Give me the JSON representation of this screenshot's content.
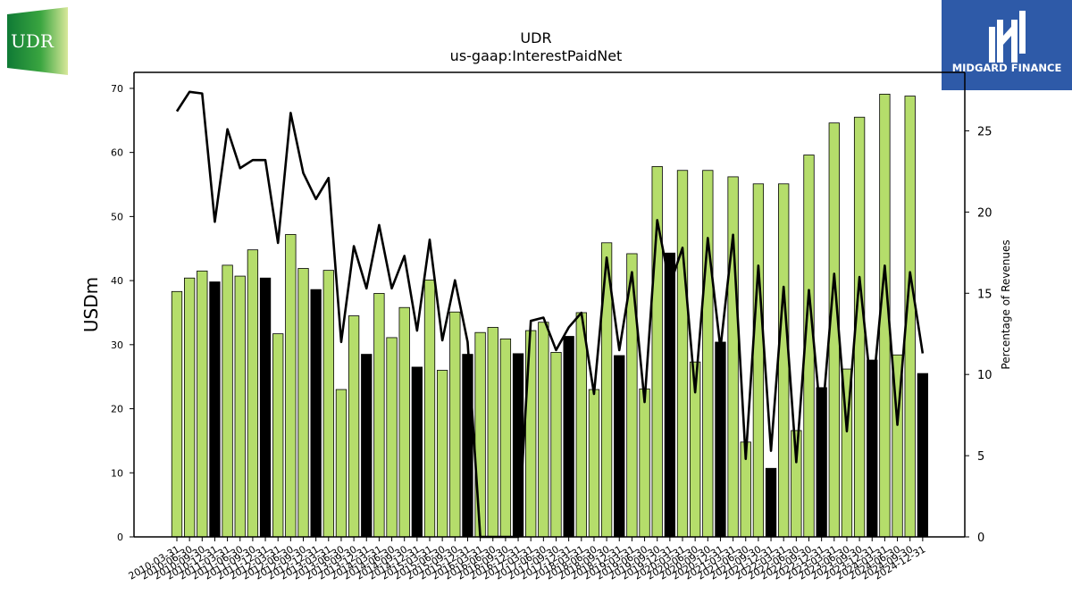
{
  "header": {
    "title": "UDR",
    "subtitle": "us-gaap:InterestPaidNet"
  },
  "logos": {
    "left_text": "UDR",
    "right_text": "MIDGARD FINANCE"
  },
  "colors": {
    "bar_green": "#b5dd6b",
    "bar_black": "#000000",
    "line": "#000000",
    "brand_blue": "#2e5aa8",
    "udr_green": "#0f8a3a"
  },
  "chart_data": {
    "type": "bar",
    "title": "UDR",
    "subtitle": "us-gaap:InterestPaidNet",
    "ylabel": "USDm",
    "y2label": "Percentage of Revenues",
    "ylim": [
      0,
      72.5
    ],
    "y2lim": [
      0,
      28.6
    ],
    "yticks": [
      0,
      10,
      20,
      30,
      40,
      50,
      60,
      70
    ],
    "y2ticks": [
      0,
      5,
      10,
      15,
      20,
      25
    ],
    "grid": false,
    "x": [
      "2010-03-31",
      "2010-06-30",
      "2010-09-30",
      "2010-12-31",
      "2011-03-31",
      "2011-06-30",
      "2011-09-30",
      "2011-12-31",
      "2012-03-31",
      "2012-06-30",
      "2012-09-30",
      "2012-12-31",
      "2013-03-31",
      "2013-06-30",
      "2013-09-30",
      "2013-12-31",
      "2014-03-31",
      "2014-06-30",
      "2014-09-30",
      "2014-12-31",
      "2015-03-31",
      "2015-06-30",
      "2015-09-30",
      "2015-12-31",
      "2016-03-31",
      "2016-06-30",
      "2016-09-30",
      "2016-12-31",
      "2017-03-31",
      "2017-06-30",
      "2017-09-30",
      "2017-12-31",
      "2018-03-31",
      "2018-06-30",
      "2018-09-30",
      "2018-12-31",
      "2019-03-31",
      "2019-06-30",
      "2019-09-30",
      "2019-12-31",
      "2020-03-31",
      "2020-06-30",
      "2020-09-30",
      "2020-12-31",
      "2021-03-31",
      "2021-06-30",
      "2021-09-30",
      "2021-12-31",
      "2022-03-31",
      "2022-06-30",
      "2022-09-30",
      "2022-12-31",
      "2023-03-31",
      "2023-06-30",
      "2023-09-30",
      "2023-12-31",
      "2024-03-31",
      "2024-06-30",
      "2024-09-30",
      "2024-12-31"
    ],
    "series": [
      {
        "name": "InterestPaidNet (USDm)",
        "axis": "left",
        "values": [
          38.3,
          40.4,
          41.5,
          39.8,
          42.4,
          40.7,
          44.8,
          40.4,
          31.7,
          47.2,
          41.9,
          38.6,
          41.6,
          23.0,
          34.5,
          28.5,
          38.0,
          31.1,
          35.8,
          26.5,
          40.1,
          26.0,
          35.1,
          28.5,
          31.9,
          32.7,
          30.9,
          28.6,
          32.2,
          33.5,
          28.8,
          31.3,
          35.0,
          23.0,
          45.9,
          28.3,
          44.2,
          23.1,
          57.8,
          44.3,
          57.2,
          27.3,
          57.2,
          30.4,
          56.2,
          14.8,
          55.1,
          10.7,
          55.1,
          16.6,
          59.6,
          23.3,
          64.6,
          26.2,
          65.5,
          27.6,
          69.1,
          28.4,
          68.8,
          25.5
        ],
        "highlight_black": [
          false,
          false,
          false,
          true,
          false,
          false,
          false,
          true,
          false,
          false,
          false,
          true,
          false,
          false,
          false,
          true,
          false,
          false,
          false,
          true,
          false,
          false,
          false,
          true,
          false,
          false,
          false,
          true,
          false,
          false,
          false,
          true,
          false,
          false,
          false,
          true,
          false,
          false,
          false,
          true,
          false,
          false,
          false,
          true,
          false,
          false,
          false,
          true,
          false,
          false,
          false,
          true,
          false,
          false,
          false,
          true,
          false,
          false,
          false,
          true
        ]
      },
      {
        "name": "Percentage of Revenues",
        "axis": "right",
        "values": [
          26.2,
          27.4,
          27.3,
          19.4,
          25.1,
          22.7,
          23.2,
          23.2,
          18.1,
          26.1,
          22.4,
          20.8,
          22.1,
          12.0,
          17.9,
          15.3,
          19.2,
          15.3,
          17.3,
          12.7,
          18.3,
          12.1,
          15.8,
          12.0,
          0,
          0,
          0,
          0,
          13.3,
          13.5,
          11.5,
          12.9,
          13.8,
          8.8,
          17.2,
          11.5,
          16.3,
          8.3,
          19.5,
          15.5,
          17.8,
          8.9,
          18.4,
          11.6,
          18.6,
          4.8,
          16.7,
          5.3,
          15.4,
          4.6,
          15.2,
          6.8,
          16.2,
          6.5,
          16.0,
          8.5,
          16.7,
          6.9,
          16.3,
          11.3
        ]
      }
    ]
  }
}
